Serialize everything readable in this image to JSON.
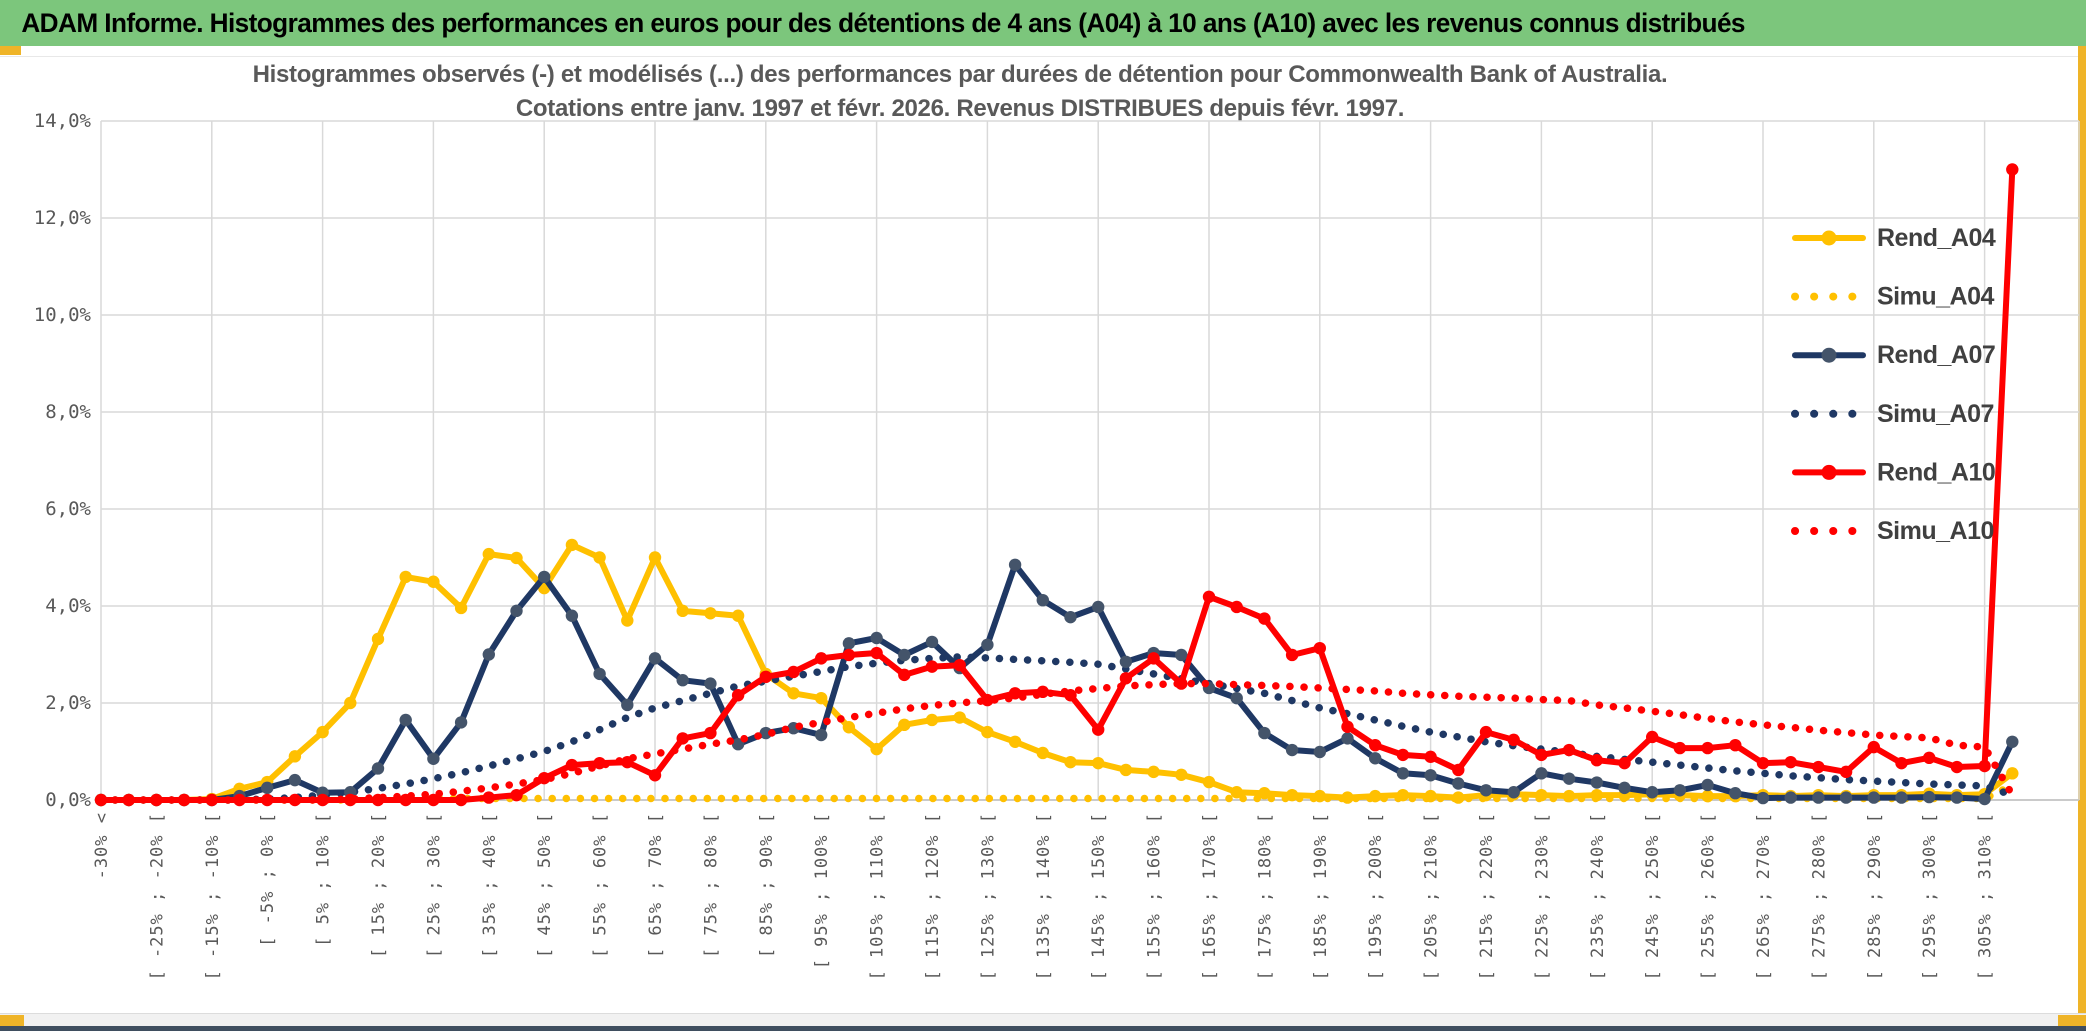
{
  "window": {
    "titlebar_text": "ADAM Informe. Histogrammes des performances en euros pour des détentions de 4 ans (A04) à 10 ans (A10) avec les revenus connus distribués",
    "titlebar_bg": "#7cc67c",
    "accent_gold": "#efb428",
    "bottom_band_color": "#3f4e5f"
  },
  "chart": {
    "title_line1": "Histogrammes observés (-) et modélisés (...) des performances par durées de détention pour Commonwealth Bank of Australia.",
    "title_line2": "Cotations entre janv. 1997 et févr. 2026. Revenus DISTRIBUES depuis févr. 1997.",
    "text_color": "#595959",
    "grid_color": "#d9d9d9",
    "axis_color": "#bfbfbf",
    "legend_text_color": "#404040"
  },
  "chart_data": {
    "type": "line",
    "title": "Histogrammes observés (-) et modélisés (...) des performances par durées de détention pour Commonwealth Bank of Australia. Cotations entre janv. 1997 et févr. 2026. Revenus DISTRIBUES depuis févr. 1997.",
    "x_axis": {
      "labels": [
        "-30% <",
        "[ -25% ; -20% [",
        "[ -15% ; -10% [",
        "[ -5% ; 0% [",
        "[ 5% ; 10% [",
        "[ 15% ; 20% [",
        "[ 25% ; 30% [",
        "[ 35% ; 40% [",
        "[ 45% ; 50% [",
        "[ 55% ; 60% [",
        "[ 65% ; 70% [",
        "[ 75% ; 80% [",
        "[ 85% ; 90% [",
        "[ 95% ; 100% [",
        "[ 105% ; 110% [",
        "[ 115% ; 120% [",
        "[ 125% ; 130% [",
        "[ 135% ; 140% [",
        "[ 145% ; 150% [",
        "[ 155% ; 160% [",
        "[ 165% ; 170% [",
        "[ 175% ; 180% [",
        "[ 185% ; 190% [",
        "[ 195% ; 200% [",
        "[ 205% ; 210% [",
        "[ 215% ; 220% [",
        "[ 225% ; 230% [",
        "[ 235% ; 240% [",
        "[ 245% ; 250% [",
        "[ 255% ; 260% [",
        "[ 265% ; 270% [",
        "[ 275% ; 280% [",
        "[ 285% ; 290% [",
        "[ 295% ; 300% [",
        "[ 305% ; 310% ["
      ],
      "points_per_label": 2,
      "gridline_every_points": 4,
      "bin_width_pct": 5
    },
    "y_axis": {
      "min": 0,
      "max": 14,
      "tick_step": 2,
      "unit": "%",
      "tick_labels": [
        "0,0%",
        "2,0%",
        "4,0%",
        "6,0%",
        "8,0%",
        "10,0%",
        "12,0%",
        "14,0%"
      ]
    },
    "legend_position": "right-inside",
    "grid": true,
    "series": [
      {
        "name": "Simu_A04",
        "style": "dotted",
        "color": "#ffc000",
        "marker_color": "#ffc000",
        "values": [
          0,
          0,
          0,
          0,
          0,
          0,
          0,
          0,
          0,
          0,
          0.03,
          0.03,
          0.03,
          0.03,
          0.03,
          0.03,
          0.03,
          0.03,
          0.03,
          0.03,
          0.03,
          0.03,
          0.03,
          0.03,
          0.03,
          0.03,
          0.03,
          0.03,
          0.03,
          0.03,
          0.03,
          0.03,
          0.03,
          0.03,
          0.03,
          0.03,
          0.03,
          0.03,
          0.03,
          0.03,
          0.03,
          0.03,
          0.03,
          0.03,
          0.03,
          0.03,
          0.03,
          0.03,
          0.03,
          0.03,
          0.03,
          0.03,
          0.03,
          0.03,
          0.03,
          0.03,
          0.03,
          0.03,
          0.03,
          0.03,
          0.03,
          0.03,
          0.03,
          0.03,
          0.03,
          0.03,
          0.03,
          0.03,
          0.03,
          0.3
        ]
      },
      {
        "name": "Rend_A04",
        "style": "solid",
        "color": "#ffc000",
        "marker_color": "#ffc000",
        "values": [
          0,
          0,
          0,
          0,
          0.02,
          0.23,
          0.37,
          0.9,
          1.4,
          2.0,
          3.32,
          4.6,
          4.5,
          3.96,
          5.07,
          4.99,
          4.37,
          5.26,
          5.0,
          3.7,
          5.0,
          3.9,
          3.85,
          3.8,
          2.6,
          2.2,
          2.1,
          1.5,
          1.05,
          1.55,
          1.65,
          1.7,
          1.4,
          1.2,
          0.97,
          0.78,
          0.76,
          0.62,
          0.58,
          0.52,
          0.37,
          0.16,
          0.14,
          0.1,
          0.08,
          0.05,
          0.08,
          0.1,
          0.08,
          0.05,
          0.1,
          0.12,
          0.1,
          0.08,
          0.1,
          0.1,
          0.12,
          0.1,
          0.08,
          0.08,
          0.1,
          0.08,
          0.1,
          0.08,
          0.1,
          0.1,
          0.13,
          0.1,
          0.12,
          0.55
        ]
      },
      {
        "name": "Simu_A07",
        "style": "dotted",
        "color": "#1f3864",
        "marker_color": "#1f3864",
        "values": [
          0,
          0,
          0,
          0,
          0,
          0,
          0.02,
          0.05,
          0.1,
          0.16,
          0.24,
          0.33,
          0.44,
          0.56,
          0.7,
          0.85,
          1.0,
          1.2,
          1.45,
          1.7,
          1.9,
          2.05,
          2.2,
          2.35,
          2.45,
          2.55,
          2.65,
          2.75,
          2.82,
          2.88,
          2.92,
          2.95,
          2.93,
          2.9,
          2.87,
          2.84,
          2.8,
          2.7,
          2.6,
          2.5,
          2.4,
          2.3,
          2.2,
          2.05,
          1.9,
          1.78,
          1.65,
          1.52,
          1.4,
          1.3,
          1.2,
          1.12,
          1.05,
          0.98,
          0.9,
          0.84,
          0.78,
          0.72,
          0.66,
          0.6,
          0.55,
          0.5,
          0.46,
          0.42,
          0.39,
          0.36,
          0.33,
          0.31,
          0.29,
          0.1
        ]
      },
      {
        "name": "Rend_A07",
        "style": "solid",
        "color": "#1f3864",
        "marker_color": "#44546a",
        "values": [
          0,
          0,
          0,
          0,
          0,
          0.08,
          0.25,
          0.41,
          0.15,
          0.16,
          0.65,
          1.65,
          0.85,
          1.6,
          3.0,
          3.9,
          4.6,
          3.8,
          2.6,
          1.96,
          2.92,
          2.47,
          2.4,
          1.15,
          1.38,
          1.48,
          1.34,
          3.23,
          3.34,
          2.99,
          3.26,
          2.72,
          3.2,
          4.85,
          4.12,
          3.77,
          3.98,
          2.85,
          3.03,
          2.99,
          2.31,
          2.1,
          1.38,
          1.03,
          0.99,
          1.27,
          0.86,
          0.55,
          0.51,
          0.34,
          0.2,
          0.16,
          0.55,
          0.44,
          0.36,
          0.25,
          0.16,
          0.2,
          0.31,
          0.14,
          0.04,
          0.05,
          0.05,
          0.05,
          0.05,
          0.05,
          0.06,
          0.05,
          0.02,
          1.2
        ]
      },
      {
        "name": "Simu_A10",
        "style": "dotted",
        "color": "#ff0000",
        "marker_color": "#ff0000",
        "values": [
          0,
          0,
          0,
          0,
          0,
          0,
          0,
          0,
          0,
          0.02,
          0.05,
          0.08,
          0.12,
          0.18,
          0.25,
          0.33,
          0.42,
          0.55,
          0.7,
          0.85,
          0.95,
          1.05,
          1.15,
          1.24,
          1.35,
          1.5,
          1.6,
          1.7,
          1.79,
          1.88,
          1.95,
          2.0,
          2.05,
          2.1,
          2.18,
          2.25,
          2.3,
          2.35,
          2.38,
          2.4,
          2.4,
          2.38,
          2.36,
          2.34,
          2.31,
          2.28,
          2.25,
          2.2,
          2.17,
          2.14,
          2.12,
          2.1,
          2.07,
          2.05,
          1.96,
          1.9,
          1.83,
          1.76,
          1.68,
          1.61,
          1.55,
          1.5,
          1.44,
          1.39,
          1.34,
          1.31,
          1.28,
          1.13,
          1.09,
          0.1
        ]
      },
      {
        "name": "Rend_A10",
        "style": "solid",
        "color": "#ff0000",
        "marker_color": "#ff0000",
        "values": [
          0,
          0,
          0,
          0,
          0,
          0,
          0,
          0,
          0,
          0,
          0,
          0,
          0,
          0,
          0.05,
          0.1,
          0.45,
          0.72,
          0.76,
          0.78,
          0.51,
          1.27,
          1.38,
          2.16,
          2.54,
          2.64,
          2.92,
          2.99,
          3.03,
          2.58,
          2.75,
          2.78,
          2.06,
          2.2,
          2.23,
          2.16,
          1.45,
          2.51,
          2.92,
          2.4,
          4.19,
          3.98,
          3.74,
          2.99,
          3.13,
          1.51,
          1.13,
          0.93,
          0.89,
          0.62,
          1.4,
          1.24,
          0.93,
          1.03,
          0.82,
          0.76,
          1.3,
          1.07,
          1.07,
          1.13,
          0.76,
          0.78,
          0.68,
          0.58,
          1.09,
          0.76,
          0.87,
          0.68,
          0.7,
          13.0
        ]
      }
    ],
    "legend": [
      {
        "label": "Rend_A04",
        "style": "solid",
        "color": "#ffc000",
        "marker_color": "#ffc000"
      },
      {
        "label": "Simu_A04",
        "style": "dotted",
        "color": "#ffc000",
        "marker_color": "#ffc000"
      },
      {
        "label": "Rend_A07",
        "style": "solid",
        "color": "#1f3864",
        "marker_color": "#44546a"
      },
      {
        "label": "Simu_A07",
        "style": "dotted",
        "color": "#1f3864",
        "marker_color": "#1f3864"
      },
      {
        "label": "Rend_A10",
        "style": "solid",
        "color": "#ff0000",
        "marker_color": "#ff0000"
      },
      {
        "label": "Simu_A10",
        "style": "dotted",
        "color": "#ff0000",
        "marker_color": "#ff0000"
      }
    ]
  }
}
